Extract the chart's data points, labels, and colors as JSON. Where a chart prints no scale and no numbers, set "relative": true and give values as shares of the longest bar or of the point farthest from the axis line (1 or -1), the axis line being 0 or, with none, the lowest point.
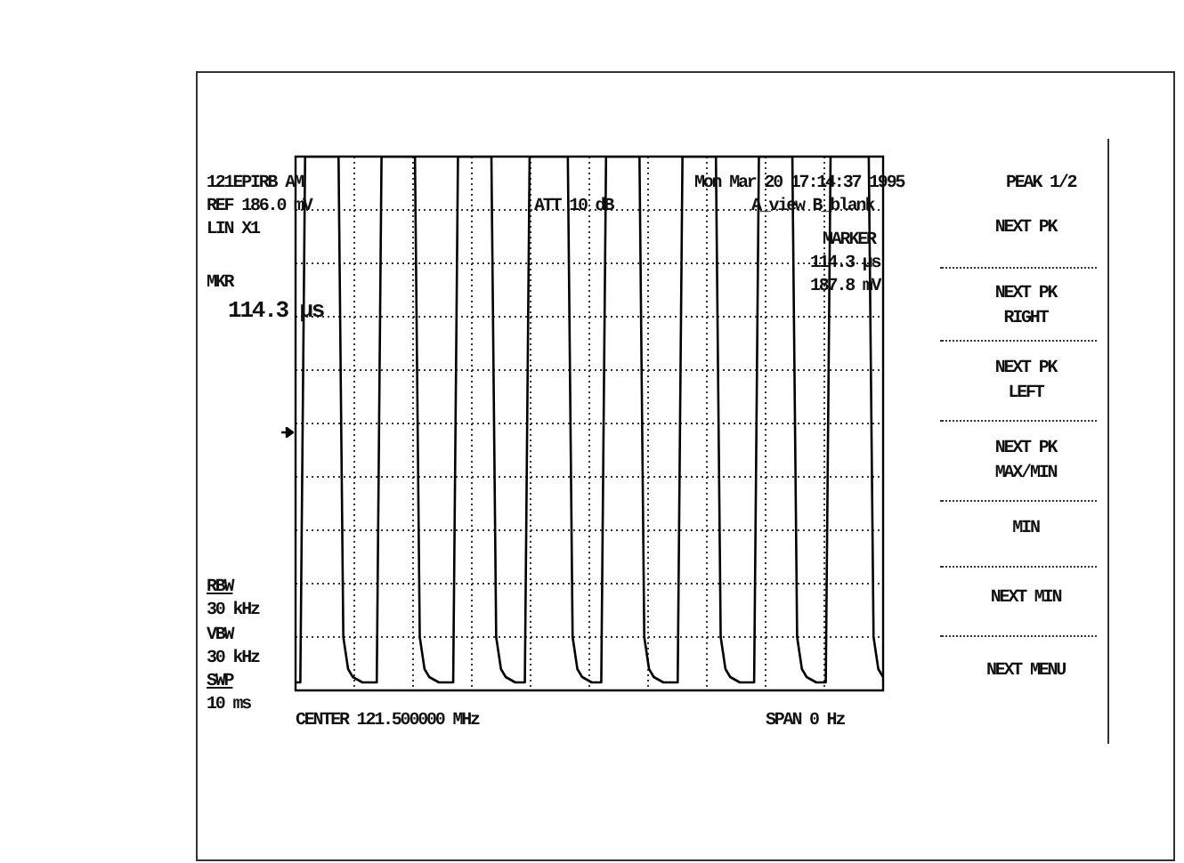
{
  "chart_data": {
    "type": "line",
    "relative": true,
    "grid": true,
    "legend": false,
    "marker": "none",
    "line_style": "solid",
    "title": "121EPIRB AM",
    "annotations": [
      "REF 186.0 mV",
      "LIN X1",
      "MKR",
      "114.3 µs",
      "ATT 10 dB",
      "Mon Mar 20 17:14:37 1995",
      "A_view B_blank",
      "PEAK 1/2",
      "MARKER",
      "114.3 µs",
      "187.8 mV",
      "RBW",
      "30 kHz",
      "VBW",
      "30 kHz",
      "SWP",
      "10 ms",
      "CENTER 121.500000 MHz",
      "SPAN 0 Hz",
      "NEXT PK",
      "NEXT PK\nRIGHT",
      "NEXT PK\nLEFT",
      "NEXT PK\nMAX/MIN",
      "MIN",
      "NEXT MIN",
      "NEXT MENU"
    ],
    "categories": [
      null,
      null,
      null,
      null,
      null,
      null,
      null,
      null,
      null,
      null,
      null,
      null,
      null,
      null,
      null,
      null,
      null,
      null,
      null,
      null,
      null,
      null,
      null,
      null,
      null,
      null,
      null,
      null,
      null,
      null,
      null,
      null,
      null,
      null,
      null,
      null,
      null,
      null,
      null,
      null,
      null,
      null,
      null,
      null,
      null,
      null,
      null,
      null,
      null,
      null,
      null,
      null,
      null,
      null,
      null,
      null,
      null,
      null,
      null,
      null,
      null,
      null,
      null,
      null,
      null,
      null,
      null,
      null,
      null,
      null,
      null,
      null,
      null,
      null,
      null,
      null,
      null,
      null,
      null,
      null,
      null,
      null,
      null,
      null,
      null,
      null,
      null,
      null,
      null,
      null,
      null,
      null,
      null,
      null,
      null,
      null,
      null,
      null,
      null,
      null,
      null,
      null,
      null,
      null,
      null,
      null,
      null,
      null,
      null,
      null,
      null,
      null,
      null,
      null,
      null,
      null,
      null,
      null,
      null,
      null,
      null,
      null,
      null,
      null
    ],
    "series": [
      {
        "color": "#000000",
        "values": [
          0.015,
          0.015,
          1,
          1,
          1,
          1,
          1,
          1,
          1,
          1,
          0.1,
          0.04,
          0.025,
          0.02,
          0.015,
          0.015,
          0.015,
          0.015,
          1,
          1,
          1,
          1,
          1,
          1,
          1,
          1,
          0.1,
          0.04,
          0.025,
          0.02,
          0.015,
          0.015,
          0.015,
          0.015,
          1,
          1,
          1,
          1,
          1,
          1,
          1,
          1,
          0.1,
          0.04,
          0.025,
          0.02,
          0.015,
          0.015,
          0.015,
          1,
          1,
          1,
          1,
          1,
          1,
          1,
          1,
          1,
          0.1,
          0.04,
          0.025,
          0.02,
          0.015,
          0.015,
          0.015,
          1,
          1,
          1,
          1,
          1,
          1,
          1,
          1,
          0.1,
          0.04,
          0.025,
          0.02,
          0.015,
          0.015,
          0.015,
          0.015,
          1,
          1,
          1,
          1,
          1,
          1,
          1,
          1,
          0.1,
          0.04,
          0.025,
          0.02,
          0.015,
          0.015,
          0.015,
          0.015,
          1,
          1,
          1,
          1,
          1,
          1,
          1,
          1,
          0.1,
          0.04,
          0.025,
          0.02,
          0.015,
          0.015,
          0.015,
          1,
          1,
          1,
          1,
          1,
          1,
          1,
          1,
          1,
          0.1,
          0.04,
          0.025
        ]
      }
    ]
  }
}
